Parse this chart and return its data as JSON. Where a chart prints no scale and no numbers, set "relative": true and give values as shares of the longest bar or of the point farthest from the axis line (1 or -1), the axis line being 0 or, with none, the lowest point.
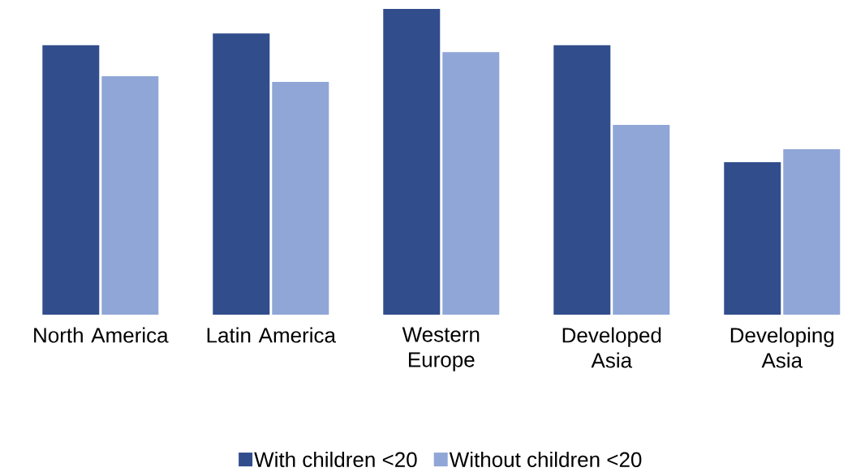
{
  "chart_data": {
    "type": "bar",
    "relative": true,
    "legend": "bottom",
    "categories": [
      "North America",
      "Latin America",
      "Western Europe",
      "Developed Asia",
      "Developing Asia"
    ],
    "series": [
      {
        "name": "With children <20",
        "color": "#314d8c",
        "values": [
          0.881,
          0.92,
          1.0,
          0.881,
          0.499
        ]
      },
      {
        "name": "Without children <20",
        "color": "#8fa6d6",
        "values": [
          0.78,
          0.761,
          0.859,
          0.621,
          0.541
        ]
      }
    ]
  }
}
